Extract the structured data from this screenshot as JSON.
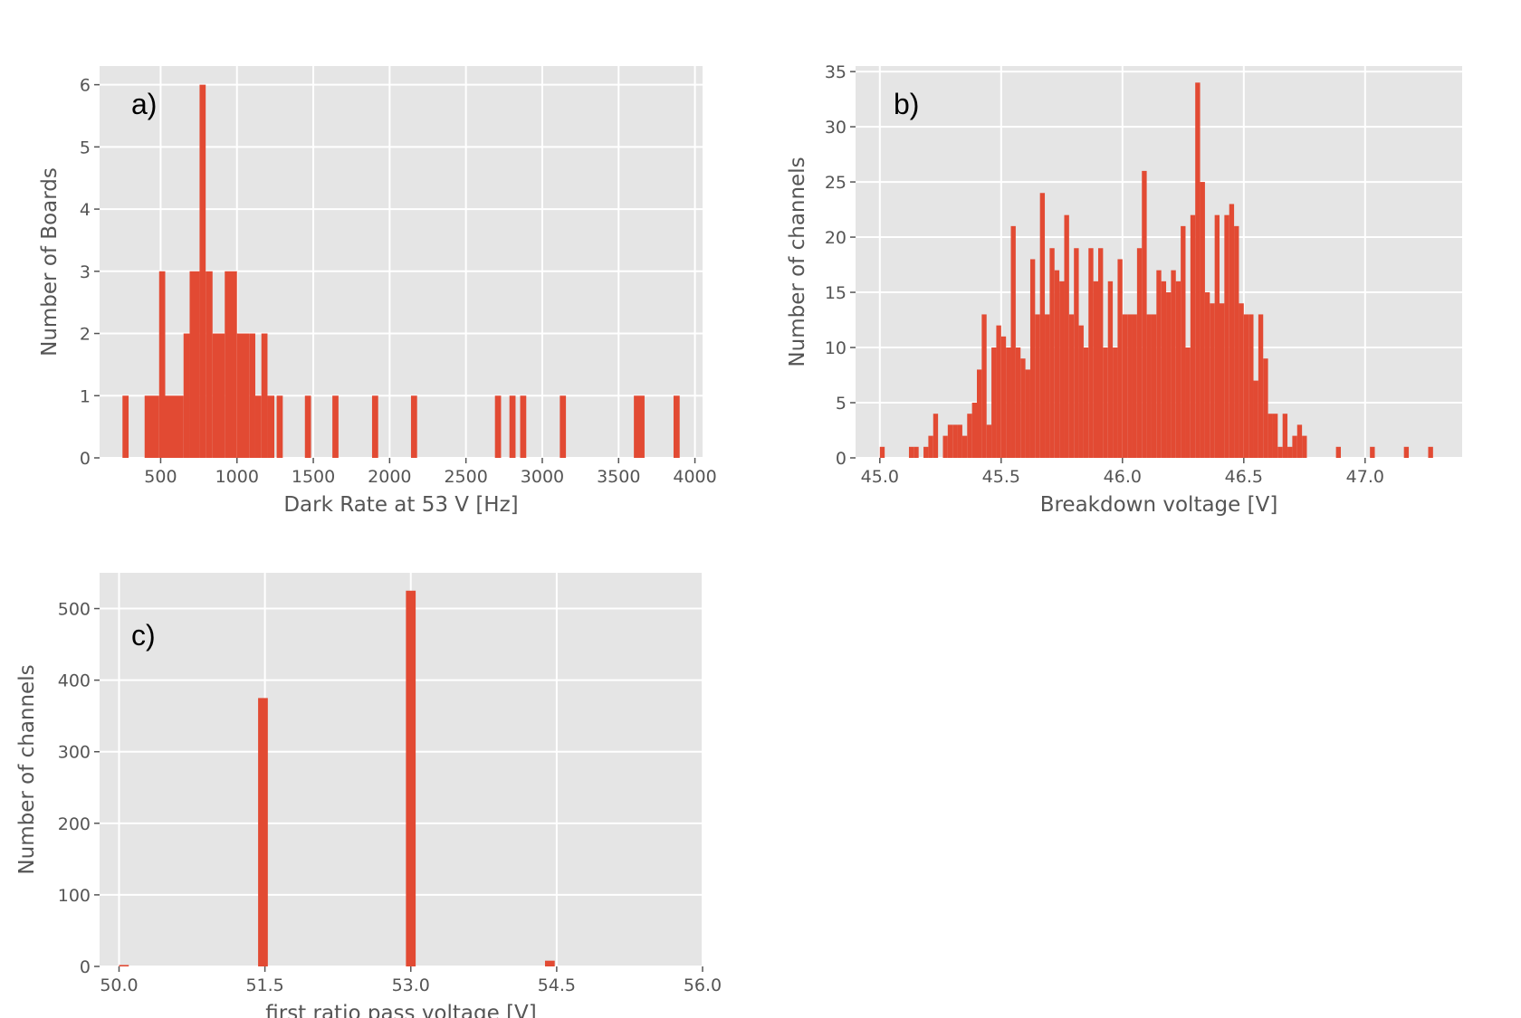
{
  "chart_data": [
    {
      "type": "bar",
      "panel": "a)",
      "xlabel": "Dark Rate at 53 V [Hz]",
      "ylabel": "Number of Boards",
      "xlim": [
        100,
        4050
      ],
      "ylim": [
        0,
        6.3
      ],
      "xticks": [
        500,
        1000,
        1500,
        2000,
        2500,
        3000,
        3500,
        4000
      ],
      "yticks": [
        0,
        1,
        2,
        3,
        4,
        5,
        6
      ],
      "grid": true,
      "color": "#E24A33",
      "background": "#E5E5E5",
      "bars": [
        {
          "x0": 250,
          "x1": 290,
          "y": 1
        },
        {
          "x0": 395,
          "x1": 490,
          "y": 1
        },
        {
          "x0": 490,
          "x1": 530,
          "y": 3
        },
        {
          "x0": 530,
          "x1": 650,
          "y": 1
        },
        {
          "x0": 650,
          "x1": 690,
          "y": 2
        },
        {
          "x0": 690,
          "x1": 755,
          "y": 3
        },
        {
          "x0": 755,
          "x1": 795,
          "y": 6
        },
        {
          "x0": 795,
          "x1": 840,
          "y": 3
        },
        {
          "x0": 840,
          "x1": 920,
          "y": 2
        },
        {
          "x0": 920,
          "x1": 1000,
          "y": 3
        },
        {
          "x0": 1000,
          "x1": 1080,
          "y": 2
        },
        {
          "x0": 1080,
          "x1": 1120,
          "y": 2
        },
        {
          "x0": 1120,
          "x1": 1160,
          "y": 1
        },
        {
          "x0": 1160,
          "x1": 1200,
          "y": 2
        },
        {
          "x0": 1200,
          "x1": 1245,
          "y": 1
        },
        {
          "x0": 1260,
          "x1": 1300,
          "y": 1
        },
        {
          "x0": 1445,
          "x1": 1485,
          "y": 1
        },
        {
          "x0": 1625,
          "x1": 1665,
          "y": 1
        },
        {
          "x0": 1885,
          "x1": 1925,
          "y": 1
        },
        {
          "x0": 2140,
          "x1": 2180,
          "y": 1
        },
        {
          "x0": 2690,
          "x1": 2730,
          "y": 1
        },
        {
          "x0": 2785,
          "x1": 2825,
          "y": 1
        },
        {
          "x0": 2855,
          "x1": 2895,
          "y": 1
        },
        {
          "x0": 3115,
          "x1": 3155,
          "y": 1
        },
        {
          "x0": 3600,
          "x1": 3670,
          "y": 1
        },
        {
          "x0": 3860,
          "x1": 3900,
          "y": 1
        }
      ]
    },
    {
      "type": "bar",
      "panel": "b)",
      "xlabel": "Breakdown voltage [V]",
      "ylabel": "Number of channels",
      "xlim": [
        44.9,
        47.4
      ],
      "ylim": [
        0,
        35.5
      ],
      "xticks": [
        45.0,
        45.5,
        46.0,
        46.5,
        47.0
      ],
      "xtick_labels": [
        "45.0",
        "45.5",
        "46.0",
        "46.5",
        "47.0"
      ],
      "yticks": [
        0,
        5,
        10,
        15,
        20,
        25,
        30,
        35
      ],
      "grid": true,
      "color": "#E24A33",
      "background": "#E5E5E5",
      "bin_start": 45.0,
      "bin_width": 0.02,
      "values": [
        1,
        0,
        0,
        0,
        0,
        0,
        1,
        1,
        0,
        1,
        2,
        4,
        0,
        2,
        3,
        3,
        3,
        2,
        4,
        5,
        8,
        13,
        3,
        10,
        12,
        11,
        10,
        21,
        10,
        9,
        8,
        18,
        13,
        24,
        13,
        19,
        17,
        16,
        22,
        13,
        19,
        12,
        10,
        19,
        16,
        19,
        10,
        16,
        10,
        18,
        13,
        13,
        13,
        19,
        26,
        13,
        13,
        17,
        16,
        15,
        17,
        16,
        21,
        10,
        22,
        34,
        25,
        15,
        14,
        22,
        14,
        22,
        23,
        21,
        14,
        13,
        13,
        7,
        13,
        9,
        4,
        4,
        1,
        4,
        1,
        2,
        3,
        2,
        0,
        0,
        0,
        0,
        0,
        0,
        1,
        0,
        0,
        0,
        0,
        0,
        0,
        1,
        0,
        0,
        0,
        0,
        0,
        0,
        1,
        0,
        0,
        0,
        0,
        1
      ],
      "clip_low": 45.0,
      "clip_high": 47.3
    },
    {
      "type": "bar",
      "panel": "c)",
      "xlabel": "first ratio pass voltage [V]",
      "ylabel": "Number of channels",
      "xlim": [
        49.8,
        56.0
      ],
      "ylim": [
        0,
        550
      ],
      "xticks": [
        50.0,
        51.5,
        53.0,
        54.5,
        56.0
      ],
      "xtick_labels": [
        "50.0",
        "51.5",
        "53.0",
        "54.5",
        "56.0"
      ],
      "yticks": [
        0,
        100,
        200,
        300,
        400,
        500
      ],
      "grid": true,
      "color": "#E24A33",
      "background": "#E5E5E5",
      "bars": [
        {
          "x0": 50.0,
          "x1": 50.1,
          "y": 2
        },
        {
          "x0": 51.43,
          "x1": 51.53,
          "y": 375
        },
        {
          "x0": 52.95,
          "x1": 53.05,
          "y": 525
        },
        {
          "x0": 54.38,
          "x1": 54.48,
          "y": 8
        }
      ]
    }
  ]
}
